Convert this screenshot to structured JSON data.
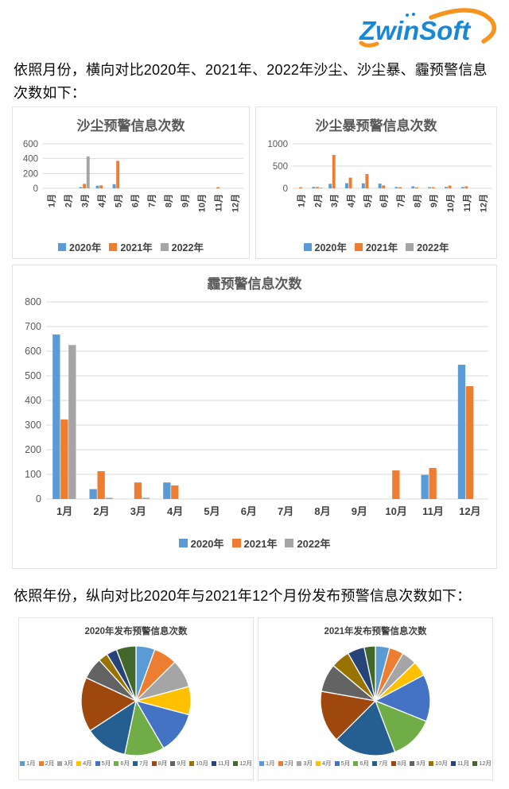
{
  "logo": {
    "text": "ZwinSoft",
    "brand_blue": "#1787d8",
    "brand_orange": "#f7941e"
  },
  "paragraphs": {
    "monthly_intro": "依照月份，横向对比2020年、2021年、2022年沙尘、沙尘暴、霾预警信息次数如下：",
    "yearly_intro": "依照年份，纵向对比2020年与2021年12个月份发布预警信息次数如下："
  },
  "months": [
    "1月",
    "2月",
    "3月",
    "4月",
    "5月",
    "6月",
    "7月",
    "8月",
    "9月",
    "10月",
    "11月",
    "12月"
  ],
  "colors": {
    "series_2020": "#5B9BD5",
    "series_2021": "#ED7D31",
    "series_2022": "#A5A5A5",
    "grid": "#D9D9D9",
    "month_palette": [
      "#5B9BD5",
      "#ED7D31",
      "#A5A5A5",
      "#FFC000",
      "#4472C4",
      "#70AD47",
      "#255E91",
      "#9E480E",
      "#636363",
      "#997300",
      "#264478",
      "#43682B"
    ]
  },
  "chart_data": [
    {
      "id": "dust",
      "type": "bar",
      "title": "沙尘预警信息次数",
      "categories": [
        "1月",
        "2月",
        "3月",
        "4月",
        "5月",
        "6月",
        "7月",
        "8月",
        "9月",
        "10月",
        "11月",
        "12月"
      ],
      "series": [
        {
          "name": "2020年",
          "color": "#5B9BD5",
          "values": [
            0,
            0,
            15,
            35,
            55,
            0,
            0,
            0,
            0,
            0,
            0,
            0
          ]
        },
        {
          "name": "2021年",
          "color": "#ED7D31",
          "values": [
            0,
            0,
            60,
            40,
            370,
            0,
            0,
            0,
            0,
            0,
            15,
            0
          ]
        },
        {
          "name": "2022年",
          "color": "#A5A5A5",
          "values": [
            0,
            0,
            430,
            0,
            0,
            0,
            0,
            0,
            0,
            0,
            0,
            0
          ]
        }
      ],
      "ylim": [
        0,
        600
      ],
      "yticks": [
        0,
        200,
        400,
        600
      ],
      "grid": true,
      "legend_position": "bottom",
      "xlabels_rotated": true
    },
    {
      "id": "sandstorm",
      "type": "bar",
      "title": "沙尘暴预警信息次数",
      "categories": [
        "1月",
        "2月",
        "3月",
        "4月",
        "5月",
        "6月",
        "7月",
        "8月",
        "9月",
        "10月",
        "11月",
        "12月"
      ],
      "series": [
        {
          "name": "2020年",
          "color": "#5B9BD5",
          "values": [
            0,
            30,
            100,
            115,
            110,
            105,
            30,
            45,
            25,
            30,
            28,
            0
          ]
        },
        {
          "name": "2021年",
          "color": "#ED7D31",
          "values": [
            25,
            30,
            750,
            240,
            320,
            65,
            25,
            20,
            25,
            62,
            45,
            0
          ]
        },
        {
          "name": "2022年",
          "color": "#A5A5A5",
          "values": [
            0,
            15,
            0,
            0,
            0,
            0,
            0,
            0,
            0,
            0,
            0,
            0
          ]
        }
      ],
      "ylim": [
        0,
        1000
      ],
      "yticks": [
        0,
        500,
        1000
      ],
      "grid": true,
      "legend_position": "bottom",
      "xlabels_rotated": true
    },
    {
      "id": "haze",
      "type": "bar",
      "title": "霾预警信息次数",
      "categories": [
        "1月",
        "2月",
        "3月",
        "4月",
        "5月",
        "6月",
        "7月",
        "8月",
        "9月",
        "10月",
        "11月",
        "12月"
      ],
      "series": [
        {
          "name": "2020年",
          "color": "#5B9BD5",
          "values": [
            668,
            40,
            0,
            67,
            0,
            0,
            0,
            0,
            0,
            0,
            98,
            545
          ]
        },
        {
          "name": "2021年",
          "color": "#ED7D31",
          "values": [
            323,
            113,
            67,
            55,
            0,
            0,
            0,
            0,
            0,
            116,
            126,
            458
          ]
        },
        {
          "name": "2022年",
          "color": "#A5A5A5",
          "values": [
            625,
            5,
            5,
            0,
            0,
            0,
            0,
            0,
            0,
            0,
            0,
            0
          ]
        }
      ],
      "ylim": [
        0,
        800
      ],
      "yticks": [
        0,
        100,
        200,
        300,
        400,
        500,
        600,
        700,
        800
      ],
      "grid": true,
      "legend_position": "bottom",
      "xlabels_rotated": false
    },
    {
      "id": "pie2020",
      "type": "pie",
      "title": "2020年发布预警信息次数",
      "categories": [
        "1月",
        "2月",
        "3月",
        "4月",
        "5月",
        "6月",
        "7月",
        "8月",
        "9月",
        "10月",
        "11月",
        "12月"
      ],
      "values_percent": [
        5.6,
        6.9,
        8.3,
        8.3,
        12.5,
        11.7,
        12.5,
        16.1,
        6.4,
        2.8,
        3.1,
        5.8
      ],
      "colors": [
        "#5B9BD5",
        "#ED7D31",
        "#A5A5A5",
        "#FFC000",
        "#4472C4",
        "#70AD47",
        "#255E91",
        "#9E480E",
        "#636363",
        "#997300",
        "#264478",
        "#43682B"
      ],
      "legend_position": "bottom",
      "start_angle_deg": -90,
      "clockwise": true
    },
    {
      "id": "pie2021",
      "type": "pie",
      "title": "2021年发布预警信息次数",
      "categories": [
        "1月",
        "2月",
        "3月",
        "4月",
        "5月",
        "6月",
        "7月",
        "8月",
        "9月",
        "10月",
        "11月",
        "12月"
      ],
      "values_percent": [
        4.2,
        4.2,
        4.4,
        4.4,
        13.9,
        13.1,
        18.3,
        15.3,
        8.3,
        5.6,
        5.0,
        3.3
      ],
      "colors": [
        "#5B9BD5",
        "#ED7D31",
        "#A5A5A5",
        "#FFC000",
        "#4472C4",
        "#70AD47",
        "#255E91",
        "#9E480E",
        "#636363",
        "#997300",
        "#264478",
        "#43682B"
      ],
      "legend_position": "bottom",
      "start_angle_deg": -90,
      "clockwise": true
    }
  ]
}
